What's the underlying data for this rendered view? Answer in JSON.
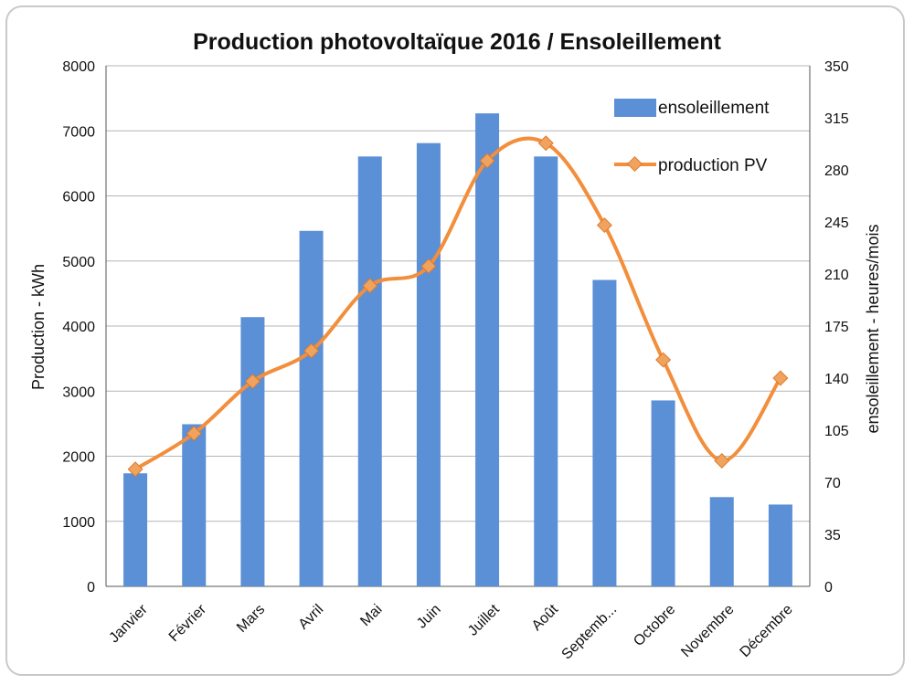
{
  "chart_data": {
    "type": "bar+line",
    "title": "Production photovoltaïque  2016 / Ensoleillement",
    "categories": [
      "Janvier",
      "Février",
      "Mars",
      "Avril",
      "Mai",
      "Juin",
      "Juillet",
      "Août",
      "Septemb...",
      "Octobre",
      "Novembre",
      "Décembre"
    ],
    "series": [
      {
        "name": "ensoleillement",
        "kind": "bar",
        "axis": "right",
        "color": "#5b8fd6",
        "values": [
          76,
          109,
          181,
          239,
          289,
          298,
          318,
          289,
          206,
          125,
          60,
          55
        ]
      },
      {
        "name": "production PV",
        "kind": "line",
        "axis": "left",
        "color": "#f28e3c",
        "marker_color": "#f0a35e",
        "values": [
          1800,
          2350,
          3150,
          3620,
          4620,
          4920,
          6540,
          6810,
          5550,
          3480,
          1930,
          3200
        ]
      }
    ],
    "y_left": {
      "label": "Production - kWh",
      "ylim": [
        0,
        8000
      ],
      "ticks": [
        "0",
        "1000",
        "2000",
        "3000",
        "4000",
        "5000",
        "6000",
        "7000",
        "8000"
      ]
    },
    "y_right": {
      "label": "ensoleillement - heures/mois",
      "ylim": [
        0,
        350
      ],
      "ticks": [
        "0",
        "35",
        "70",
        "105",
        "140",
        "175",
        "210",
        "245",
        "280",
        "315",
        "350"
      ]
    },
    "grid": true,
    "legend_position": "top-right"
  }
}
